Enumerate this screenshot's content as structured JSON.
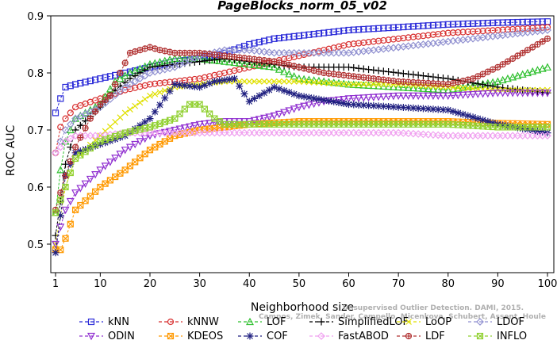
{
  "chart_data": {
    "type": "line",
    "title": "PageBlocks_norm_05_v02",
    "xlabel": "Neighborhood size",
    "ylabel": "ROC AUC",
    "xlim": [
      1,
      100
    ],
    "ylim": [
      0.45,
      0.9
    ],
    "xticks": [
      1,
      10,
      20,
      30,
      40,
      50,
      60,
      70,
      80,
      90,
      100
    ],
    "yticks": [
      0.5,
      0.6,
      0.7,
      0.8,
      0.9
    ],
    "ytick_labels": [
      "0.5",
      "0.6",
      "0.7",
      "0.8",
      "0.9"
    ],
    "grid": false,
    "legend_position": "bottom",
    "watermark": [
      "Unsupervised Outlier Detection. DAMI, 2015.",
      "Campos, Zimek, Sander, Campello, Micenkova, Schubert, Assent, Houle"
    ],
    "series": [
      {
        "name": "kNN",
        "color": "#2a2ad8",
        "marker": "square",
        "points": [
          [
            1,
            0.73
          ],
          [
            2,
            0.755
          ],
          [
            3,
            0.775
          ],
          [
            5,
            0.78
          ],
          [
            10,
            0.79
          ],
          [
            15,
            0.8
          ],
          [
            20,
            0.81
          ],
          [
            25,
            0.82
          ],
          [
            30,
            0.825
          ],
          [
            35,
            0.835
          ],
          [
            40,
            0.85
          ],
          [
            45,
            0.86
          ],
          [
            50,
            0.865
          ],
          [
            55,
            0.87
          ],
          [
            60,
            0.875
          ],
          [
            70,
            0.88
          ],
          [
            80,
            0.885
          ],
          [
            90,
            0.888
          ],
          [
            100,
            0.89
          ]
        ]
      },
      {
        "name": "kNNW",
        "color": "#d83030",
        "marker": "circle",
        "points": [
          [
            1,
            0.66
          ],
          [
            2,
            0.705
          ],
          [
            3,
            0.72
          ],
          [
            5,
            0.74
          ],
          [
            10,
            0.755
          ],
          [
            15,
            0.77
          ],
          [
            20,
            0.78
          ],
          [
            25,
            0.785
          ],
          [
            30,
            0.79
          ],
          [
            35,
            0.8
          ],
          [
            40,
            0.81
          ],
          [
            45,
            0.82
          ],
          [
            50,
            0.83
          ],
          [
            60,
            0.85
          ],
          [
            70,
            0.86
          ],
          [
            80,
            0.87
          ],
          [
            90,
            0.875
          ],
          [
            100,
            0.88
          ]
        ]
      },
      {
        "name": "LOF",
        "color": "#30c030",
        "marker": "triangle",
        "points": [
          [
            1,
            0.555
          ],
          [
            2,
            0.63
          ],
          [
            3,
            0.68
          ],
          [
            5,
            0.72
          ],
          [
            10,
            0.745
          ],
          [
            13,
            0.785
          ],
          [
            16,
            0.8
          ],
          [
            20,
            0.815
          ],
          [
            25,
            0.825
          ],
          [
            30,
            0.825
          ],
          [
            35,
            0.82
          ],
          [
            40,
            0.815
          ],
          [
            45,
            0.81
          ],
          [
            50,
            0.79
          ],
          [
            60,
            0.78
          ],
          [
            70,
            0.775
          ],
          [
            80,
            0.77
          ],
          [
            90,
            0.785
          ],
          [
            100,
            0.81
          ]
        ]
      },
      {
        "name": "SimplifiedLOF",
        "color": "#000000",
        "marker": "plus",
        "points": [
          [
            1,
            0.515
          ],
          [
            2,
            0.575
          ],
          [
            3,
            0.64
          ],
          [
            5,
            0.7
          ],
          [
            10,
            0.74
          ],
          [
            13,
            0.77
          ],
          [
            16,
            0.79
          ],
          [
            20,
            0.81
          ],
          [
            25,
            0.815
          ],
          [
            30,
            0.82
          ],
          [
            35,
            0.825
          ],
          [
            40,
            0.82
          ],
          [
            45,
            0.815
          ],
          [
            50,
            0.81
          ],
          [
            60,
            0.81
          ],
          [
            70,
            0.8
          ],
          [
            80,
            0.79
          ],
          [
            90,
            0.775
          ],
          [
            100,
            0.765
          ]
        ]
      },
      {
        "name": "LoOP",
        "color": "#e0e000",
        "marker": "x",
        "points": [
          [
            1,
            0.5
          ],
          [
            2,
            0.55
          ],
          [
            3,
            0.6
          ],
          [
            5,
            0.65
          ],
          [
            10,
            0.69
          ],
          [
            15,
            0.73
          ],
          [
            20,
            0.76
          ],
          [
            25,
            0.775
          ],
          [
            30,
            0.78
          ],
          [
            35,
            0.785
          ],
          [
            40,
            0.785
          ],
          [
            45,
            0.785
          ],
          [
            50,
            0.785
          ],
          [
            60,
            0.78
          ],
          [
            70,
            0.78
          ],
          [
            80,
            0.775
          ],
          [
            90,
            0.77
          ],
          [
            100,
            0.77
          ]
        ]
      },
      {
        "name": "LDOF",
        "color": "#9090d0",
        "marker": "diamond",
        "points": [
          [
            1,
            0.66
          ],
          [
            3,
            0.7
          ],
          [
            5,
            0.72
          ],
          [
            10,
            0.74
          ],
          [
            15,
            0.775
          ],
          [
            20,
            0.8
          ],
          [
            25,
            0.81
          ],
          [
            30,
            0.83
          ],
          [
            35,
            0.84
          ],
          [
            40,
            0.84
          ],
          [
            45,
            0.835
          ],
          [
            50,
            0.835
          ],
          [
            60,
            0.835
          ],
          [
            70,
            0.845
          ],
          [
            80,
            0.855
          ],
          [
            90,
            0.865
          ],
          [
            100,
            0.875
          ]
        ]
      },
      {
        "name": "ODIN",
        "color": "#9030d0",
        "marker": "triangle-down",
        "points": [
          [
            1,
            0.5
          ],
          [
            3,
            0.56
          ],
          [
            5,
            0.59
          ],
          [
            10,
            0.63
          ],
          [
            15,
            0.665
          ],
          [
            20,
            0.69
          ],
          [
            25,
            0.7
          ],
          [
            30,
            0.71
          ],
          [
            35,
            0.715
          ],
          [
            40,
            0.715
          ],
          [
            45,
            0.725
          ],
          [
            50,
            0.74
          ],
          [
            55,
            0.75
          ],
          [
            60,
            0.755
          ],
          [
            70,
            0.76
          ],
          [
            80,
            0.76
          ],
          [
            90,
            0.765
          ],
          [
            100,
            0.765
          ]
        ]
      },
      {
        "name": "KDEOS",
        "color": "#ff9900",
        "marker": "square-x",
        "points": [
          [
            1,
            0.49
          ],
          [
            2,
            0.49
          ],
          [
            3,
            0.51
          ],
          [
            5,
            0.56
          ],
          [
            10,
            0.6
          ],
          [
            15,
            0.63
          ],
          [
            20,
            0.665
          ],
          [
            25,
            0.69
          ],
          [
            30,
            0.7
          ],
          [
            35,
            0.705
          ],
          [
            40,
            0.71
          ],
          [
            50,
            0.715
          ],
          [
            60,
            0.715
          ],
          [
            70,
            0.715
          ],
          [
            80,
            0.715
          ],
          [
            90,
            0.712
          ],
          [
            100,
            0.71
          ]
        ]
      },
      {
        "name": "COF",
        "color": "#202080",
        "marker": "star",
        "points": [
          [
            1,
            0.485
          ],
          [
            2,
            0.55
          ],
          [
            3,
            0.62
          ],
          [
            5,
            0.66
          ],
          [
            10,
            0.675
          ],
          [
            15,
            0.69
          ],
          [
            20,
            0.72
          ],
          [
            25,
            0.78
          ],
          [
            30,
            0.775
          ],
          [
            33,
            0.785
          ],
          [
            37,
            0.79
          ],
          [
            40,
            0.75
          ],
          [
            45,
            0.775
          ],
          [
            50,
            0.76
          ],
          [
            60,
            0.745
          ],
          [
            70,
            0.74
          ],
          [
            80,
            0.735
          ],
          [
            90,
            0.71
          ],
          [
            100,
            0.695
          ]
        ]
      },
      {
        "name": "FastABOD",
        "color": "#f0a0f0",
        "marker": "diamond",
        "points": [
          [
            1,
            0.66
          ],
          [
            3,
            0.68
          ],
          [
            5,
            0.69
          ],
          [
            10,
            0.69
          ],
          [
            15,
            0.695
          ],
          [
            20,
            0.695
          ],
          [
            30,
            0.695
          ],
          [
            40,
            0.695
          ],
          [
            50,
            0.695
          ],
          [
            60,
            0.695
          ],
          [
            70,
            0.695
          ],
          [
            80,
            0.69
          ],
          [
            90,
            0.69
          ],
          [
            100,
            0.69
          ]
        ]
      },
      {
        "name": "LDF",
        "color": "#b03030",
        "marker": "circle-plus",
        "points": [
          [
            1,
            0.56
          ],
          [
            3,
            0.62
          ],
          [
            5,
            0.67
          ],
          [
            8,
            0.72
          ],
          [
            10,
            0.745
          ],
          [
            12,
            0.76
          ],
          [
            14,
            0.8
          ],
          [
            16,
            0.835
          ],
          [
            18,
            0.84
          ],
          [
            20,
            0.845
          ],
          [
            22,
            0.84
          ],
          [
            25,
            0.835
          ],
          [
            30,
            0.835
          ],
          [
            35,
            0.83
          ],
          [
            40,
            0.825
          ],
          [
            45,
            0.82
          ],
          [
            50,
            0.81
          ],
          [
            55,
            0.8
          ],
          [
            60,
            0.795
          ],
          [
            70,
            0.785
          ],
          [
            80,
            0.78
          ],
          [
            85,
            0.79
          ],
          [
            90,
            0.81
          ],
          [
            95,
            0.835
          ],
          [
            100,
            0.86
          ]
        ]
      },
      {
        "name": "INFLO",
        "color": "#90d030",
        "marker": "square-x",
        "points": [
          [
            1,
            0.555
          ],
          [
            3,
            0.6
          ],
          [
            5,
            0.65
          ],
          [
            10,
            0.68
          ],
          [
            15,
            0.695
          ],
          [
            20,
            0.705
          ],
          [
            25,
            0.72
          ],
          [
            28,
            0.745
          ],
          [
            30,
            0.745
          ],
          [
            33,
            0.72
          ],
          [
            35,
            0.71
          ],
          [
            40,
            0.71
          ],
          [
            50,
            0.71
          ],
          [
            60,
            0.71
          ],
          [
            70,
            0.71
          ],
          [
            80,
            0.71
          ],
          [
            90,
            0.705
          ],
          [
            100,
            0.705
          ]
        ]
      }
    ]
  }
}
